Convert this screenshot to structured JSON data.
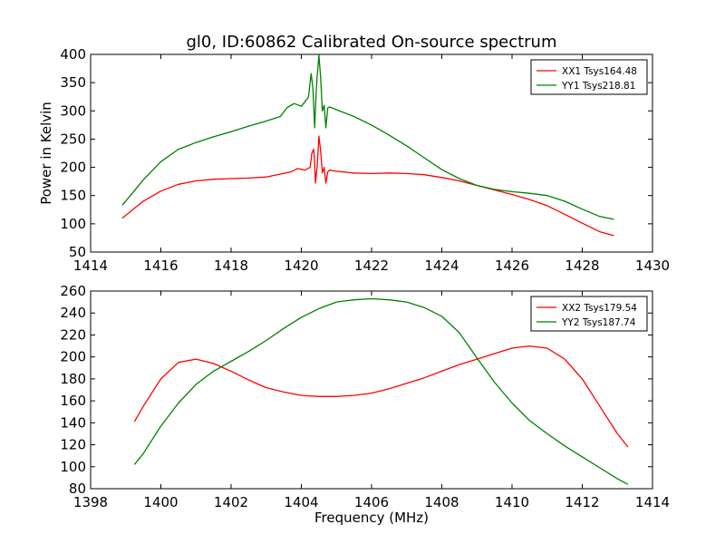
{
  "figure": {
    "title": "gl0, ID:60862 Calibrated On-source spectrum"
  },
  "chart_data": [
    {
      "type": "line",
      "title": "gl0, ID:60862 Calibrated On-source spectrum",
      "xlabel": "",
      "ylabel": "Power in Kelvin",
      "xlim": [
        1414,
        1430
      ],
      "ylim": [
        50,
        400
      ],
      "xticks": [
        "1414",
        "1416",
        "1418",
        "1420",
        "1422",
        "1424",
        "1426",
        "1428",
        "1430"
      ],
      "yticks": [
        "50",
        "100",
        "150",
        "200",
        "250",
        "300",
        "350",
        "400"
      ],
      "legend_position": "top-right",
      "grid": false,
      "series": [
        {
          "name": "XX1 Tsys164.48",
          "color": "#ff0000",
          "x": [
            1414.9,
            1415.2,
            1415.5,
            1416,
            1416.5,
            1417,
            1417.5,
            1418,
            1418.5,
            1419,
            1419.4,
            1419.7,
            1419.9,
            1420.1,
            1420.25,
            1420.3,
            1420.35,
            1420.38,
            1420.4,
            1420.45,
            1420.5,
            1420.55,
            1420.6,
            1420.65,
            1420.7,
            1420.75,
            1420.8,
            1421,
            1421.5,
            1422,
            1422.5,
            1423,
            1423.5,
            1424,
            1424.5,
            1425,
            1425.5,
            1426,
            1426.5,
            1427,
            1427.5,
            1428,
            1428.5,
            1428.9
          ],
          "y": [
            110,
            125,
            140,
            158,
            170,
            176,
            179,
            180,
            181,
            183,
            188,
            192,
            198,
            195,
            200,
            225,
            232,
            210,
            172,
            200,
            255,
            230,
            190,
            200,
            172,
            192,
            195,
            193,
            190,
            189,
            190,
            189,
            187,
            182,
            176,
            168,
            160,
            152,
            143,
            132,
            117,
            101,
            86,
            79
          ]
        },
        {
          "name": "YY1 Tsys218.81",
          "color": "#008000",
          "x": [
            1414.9,
            1415.2,
            1415.5,
            1416,
            1416.5,
            1417,
            1417.5,
            1418,
            1418.5,
            1419,
            1419.4,
            1419.6,
            1419.8,
            1420,
            1420.2,
            1420.28,
            1420.33,
            1420.38,
            1420.42,
            1420.45,
            1420.5,
            1420.55,
            1420.6,
            1420.65,
            1420.7,
            1420.75,
            1420.8,
            1421,
            1421.5,
            1422,
            1422.5,
            1423,
            1423.5,
            1424,
            1424.5,
            1425,
            1425.5,
            1426,
            1426.5,
            1427,
            1427.5,
            1428,
            1428.5,
            1428.9
          ],
          "y": [
            133,
            155,
            178,
            210,
            232,
            244,
            254,
            263,
            273,
            282,
            290,
            306,
            313,
            308,
            324,
            366,
            340,
            270,
            330,
            360,
            398,
            360,
            300,
            310,
            270,
            305,
            307,
            302,
            290,
            275,
            257,
            238,
            217,
            196,
            180,
            168,
            161,
            157,
            154,
            150,
            140,
            126,
            113,
            108
          ]
        }
      ]
    },
    {
      "type": "line",
      "title": "",
      "xlabel": "Frequency (MHz)",
      "ylabel": "",
      "xlim": [
        1398,
        1414
      ],
      "ylim": [
        80,
        260
      ],
      "xticks": [
        "1398",
        "1400",
        "1402",
        "1404",
        "1406",
        "1408",
        "1410",
        "1412",
        "1414"
      ],
      "yticks": [
        "80",
        "100",
        "120",
        "140",
        "160",
        "180",
        "200",
        "220",
        "240",
        "260"
      ],
      "legend_position": "top-right",
      "grid": false,
      "series": [
        {
          "name": "XX2 Tsys179.54",
          "color": "#ff0000",
          "x": [
            1399.25,
            1399.5,
            1400,
            1400.5,
            1401,
            1401.5,
            1402,
            1402.5,
            1403,
            1403.5,
            1404,
            1404.5,
            1405,
            1405.5,
            1406,
            1406.5,
            1407,
            1407.5,
            1408,
            1408.5,
            1409,
            1409.5,
            1410,
            1410.5,
            1411,
            1411.5,
            1412,
            1412.5,
            1413,
            1413.3
          ],
          "y": [
            141,
            155,
            180,
            195,
            198,
            194,
            187,
            179,
            172,
            168,
            165,
            164,
            164,
            165,
            167,
            171,
            176,
            181,
            187,
            193,
            198,
            203,
            208,
            210,
            208,
            198,
            180,
            155,
            130,
            118
          ]
        },
        {
          "name": "YY2 Tsys187.74",
          "color": "#008000",
          "x": [
            1399.25,
            1399.5,
            1400,
            1400.5,
            1401,
            1401.5,
            1402,
            1402.5,
            1403,
            1403.5,
            1404,
            1404.5,
            1405,
            1405.5,
            1406,
            1406.5,
            1407,
            1407.5,
            1408,
            1408.5,
            1409,
            1409.5,
            1410,
            1410.5,
            1411,
            1411.5,
            1412,
            1412.5,
            1413,
            1413.3
          ],
          "y": [
            102,
            112,
            137,
            158,
            175,
            187,
            196,
            205,
            215,
            226,
            236,
            244,
            250,
            252,
            253,
            252,
            250,
            245,
            237,
            222,
            199,
            177,
            158,
            142,
            130,
            119,
            109,
            99,
            89,
            84
          ]
        }
      ]
    }
  ]
}
